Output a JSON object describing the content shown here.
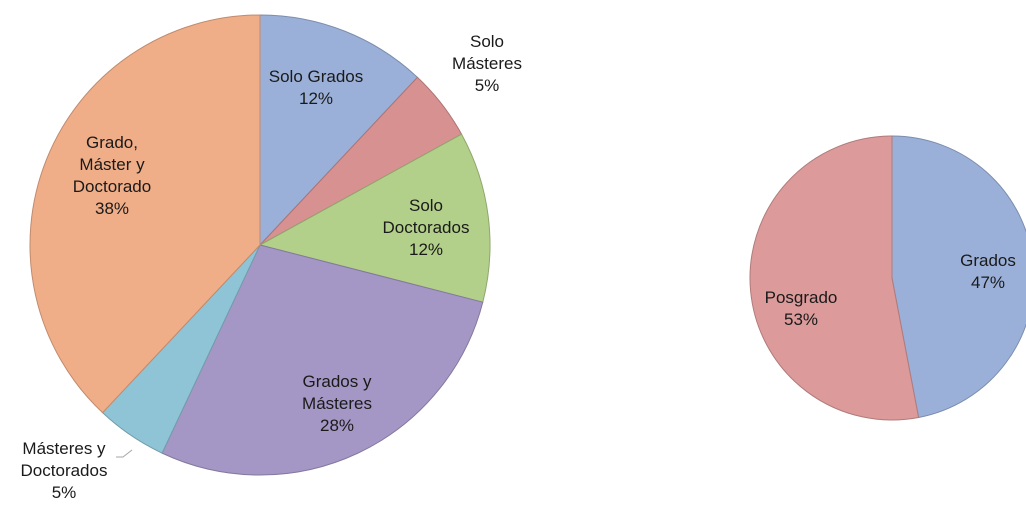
{
  "chart_data": [
    {
      "type": "pie",
      "slices": [
        {
          "label": [
            "Solo Grados",
            "12%"
          ],
          "value": 12,
          "color": "#9bb0d8"
        },
        {
          "label": [
            "Solo",
            "Másteres",
            "5%"
          ],
          "value": 5,
          "color": "#d89191"
        },
        {
          "label": [
            "Solo",
            "Doctorados",
            "12%"
          ],
          "value": 12,
          "color": "#b3d08a"
        },
        {
          "label": [
            "Grados y",
            "Másteres",
            "28%"
          ],
          "value": 28,
          "color": "#a597c5"
        },
        {
          "label": [
            "Másteres y",
            "Doctorados",
            "5%"
          ],
          "value": 5,
          "color": "#8fc4d6"
        },
        {
          "label": [
            "Grado,",
            "Máster y",
            "Doctorado",
            "38%"
          ],
          "value": 38,
          "color": "#f0ae88"
        }
      ]
    },
    {
      "type": "pie",
      "slices": [
        {
          "label": [
            "Grados",
            "47%"
          ],
          "value": 47,
          "color": "#9bb0d8"
        },
        {
          "label": [
            "Posgrado",
            "53%"
          ],
          "value": 53,
          "color": "#dc9a9a"
        }
      ]
    }
  ]
}
